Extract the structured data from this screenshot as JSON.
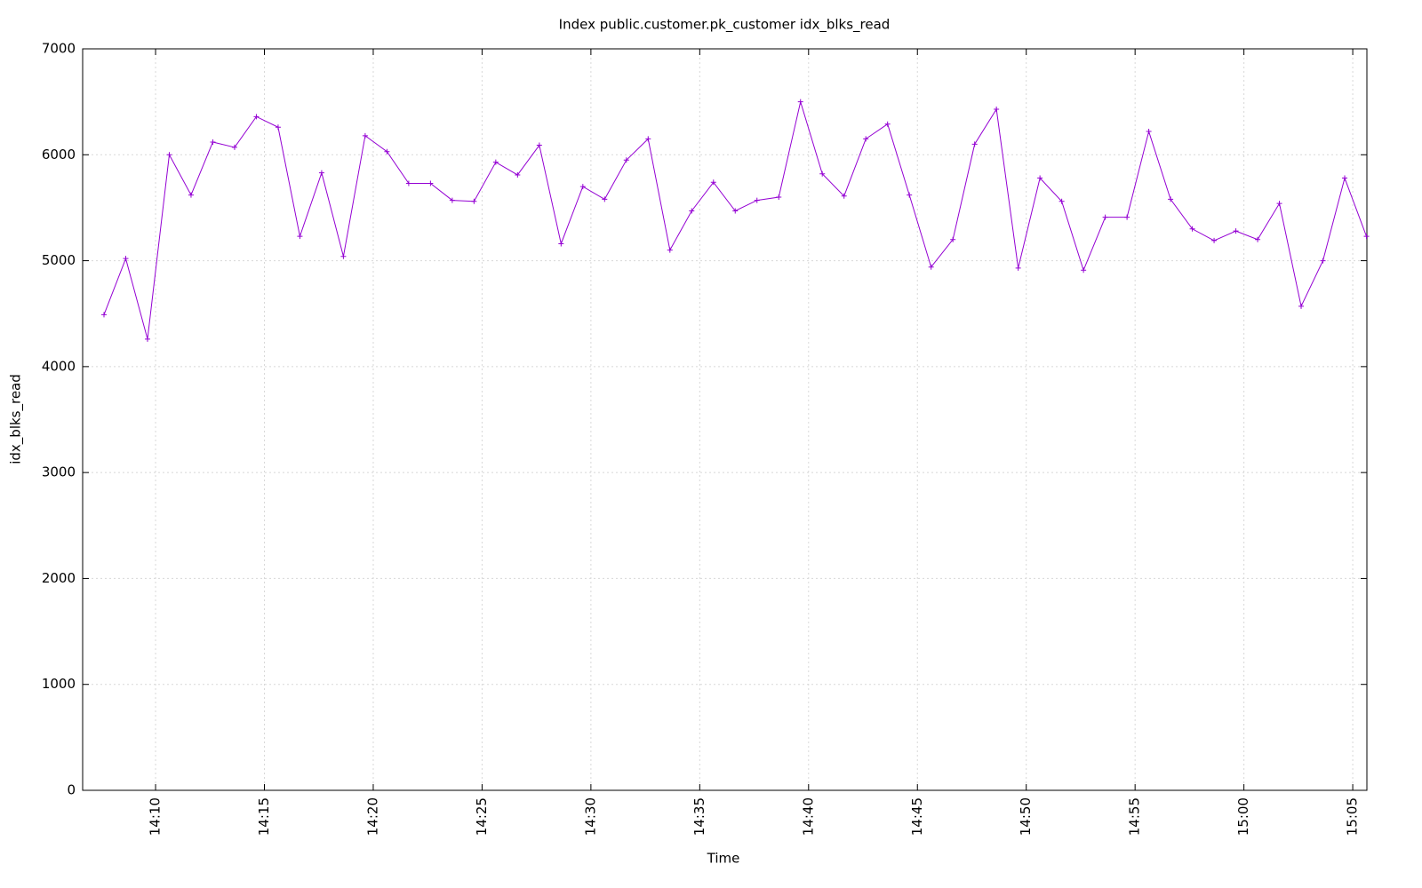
{
  "chart_data": {
    "type": "line",
    "title": "Index public.customer.pk_customer idx_blks_read",
    "x_label": "Time",
    "y_label": "idx_blks_read",
    "x": [
      847.63,
      848.63,
      849.63,
      850.63,
      851.63,
      852.63,
      853.63,
      854.63,
      855.63,
      856.63,
      857.63,
      858.63,
      859.63,
      860.63,
      861.63,
      862.63,
      863.63,
      864.63,
      865.63,
      866.63,
      867.63,
      868.63,
      869.63,
      870.63,
      871.63,
      872.63,
      873.63,
      874.63,
      875.63,
      876.63,
      877.63,
      878.63,
      879.63,
      880.63,
      881.63,
      882.63,
      883.63,
      884.63,
      885.63,
      886.63,
      887.63,
      888.63,
      889.63,
      890.63,
      891.63,
      892.63,
      893.63,
      894.63,
      895.63,
      896.63,
      897.63,
      898.63,
      899.63,
      900.63,
      901.63,
      902.63,
      903.63,
      904.63,
      905.63
    ],
    "series": [
      {
        "name": "idx_blks_read",
        "color": "#9400d3",
        "values": [
          4490,
          5020,
          4260,
          6000,
          5620,
          6120,
          6070,
          6360,
          6260,
          5230,
          5830,
          5040,
          6180,
          6030,
          5730,
          5730,
          5570,
          5560,
          5930,
          5810,
          6090,
          5160,
          5700,
          5580,
          5950,
          6150,
          5100,
          5470,
          5740,
          5470,
          5570,
          5600,
          6500,
          5820,
          5610,
          6150,
          6290,
          5620,
          4940,
          5200,
          6100,
          6430,
          4930,
          5780,
          5560,
          4910,
          5410,
          5410,
          6220,
          5580,
          5300,
          5190,
          5280,
          5200,
          5540,
          4570,
          5000,
          5780,
          5230
        ]
      }
    ],
    "xlim": [
      846.65,
      905.65
    ],
    "xticks": [
      {
        "value": 850,
        "label": "14:10"
      },
      {
        "value": 855,
        "label": "14:15"
      },
      {
        "value": 860,
        "label": "14:20"
      },
      {
        "value": 865,
        "label": "14:25"
      },
      {
        "value": 870,
        "label": "14:30"
      },
      {
        "value": 875,
        "label": "14:35"
      },
      {
        "value": 880,
        "label": "14:40"
      },
      {
        "value": 885,
        "label": "14:45"
      },
      {
        "value": 890,
        "label": "14:50"
      },
      {
        "value": 895,
        "label": "14:55"
      },
      {
        "value": 900,
        "label": "15:00"
      },
      {
        "value": 905,
        "label": "15:05"
      }
    ],
    "ylim": [
      0,
      7000
    ],
    "yticks": [
      0,
      1000,
      2000,
      3000,
      4000,
      5000,
      6000,
      7000
    ],
    "grid": true
  }
}
